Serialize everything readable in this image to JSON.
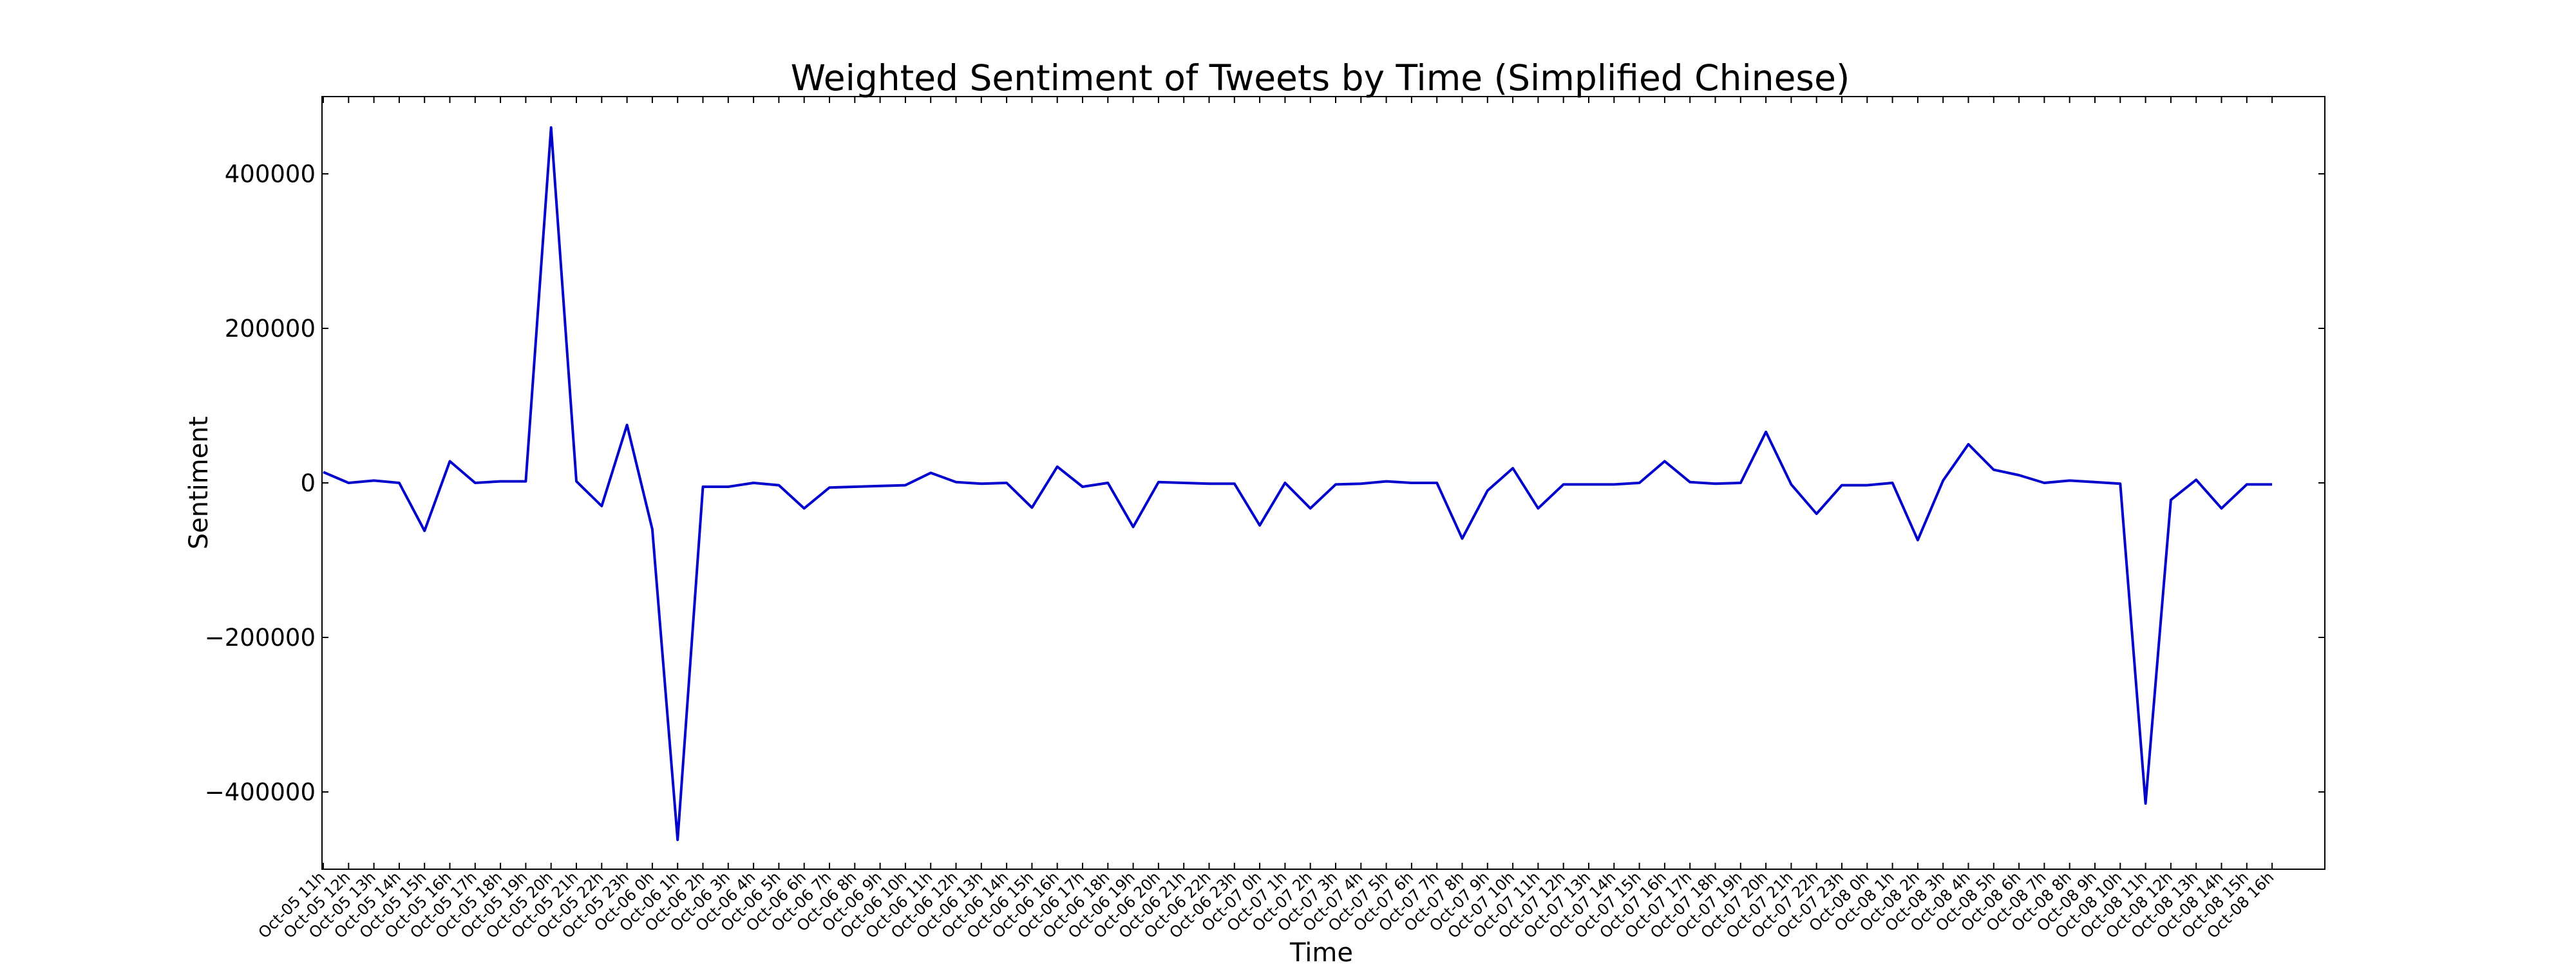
{
  "chart_data": {
    "type": "line",
    "title": "Weighted Sentiment of Tweets by Time (Simplified Chinese)",
    "xlabel": "Time",
    "ylabel": "Sentiment",
    "ylim": [
      -500000,
      500000
    ],
    "yticks": [
      -400000,
      -200000,
      0,
      200000,
      400000
    ],
    "ytick_labels": [
      "−400000",
      "−200000",
      "0",
      "200000",
      "400000"
    ],
    "grid": false,
    "line_color": "#0000cc",
    "categories": [
      "Oct-05 11h",
      "Oct-05 12h",
      "Oct-05 13h",
      "Oct-05 14h",
      "Oct-05 15h",
      "Oct-05 16h",
      "Oct-05 17h",
      "Oct-05 18h",
      "Oct-05 19h",
      "Oct-05 20h",
      "Oct-05 21h",
      "Oct-05 22h",
      "Oct-05 23h",
      "Oct-06 0h",
      "Oct-06 1h",
      "Oct-06 2h",
      "Oct-06 3h",
      "Oct-06 4h",
      "Oct-06 5h",
      "Oct-06 6h",
      "Oct-06 7h",
      "Oct-06 8h",
      "Oct-06 9h",
      "Oct-06 10h",
      "Oct-06 11h",
      "Oct-06 12h",
      "Oct-06 13h",
      "Oct-06 14h",
      "Oct-06 15h",
      "Oct-06 16h",
      "Oct-06 17h",
      "Oct-06 18h",
      "Oct-06 19h",
      "Oct-06 20h",
      "Oct-06 21h",
      "Oct-06 22h",
      "Oct-06 23h",
      "Oct-07 0h",
      "Oct-07 1h",
      "Oct-07 2h",
      "Oct-07 3h",
      "Oct-07 4h",
      "Oct-07 5h",
      "Oct-07 6h",
      "Oct-07 7h",
      "Oct-07 8h",
      "Oct-07 9h",
      "Oct-07 10h",
      "Oct-07 11h",
      "Oct-07 12h",
      "Oct-07 13h",
      "Oct-07 14h",
      "Oct-07 15h",
      "Oct-07 16h",
      "Oct-07 17h",
      "Oct-07 18h",
      "Oct-07 19h",
      "Oct-07 20h",
      "Oct-07 21h",
      "Oct-07 22h",
      "Oct-07 23h",
      "Oct-08 0h",
      "Oct-08 1h",
      "Oct-08 2h",
      "Oct-08 3h",
      "Oct-08 4h",
      "Oct-08 5h",
      "Oct-08 6h",
      "Oct-08 7h",
      "Oct-08 8h",
      "Oct-08 9h",
      "Oct-08 10h",
      "Oct-08 11h",
      "Oct-08 12h",
      "Oct-08 13h",
      "Oct-08 14h",
      "Oct-08 15h",
      "Oct-08 16h"
    ],
    "series": [
      {
        "values": [
          14000,
          0,
          3000,
          0,
          -62000,
          28000,
          0,
          2000,
          2000,
          460000,
          2000,
          -30000,
          75000,
          -60000,
          -462000,
          -5000,
          -5000,
          0,
          -3000,
          -33000,
          -6000,
          -5000,
          -4000,
          -3000,
          13000,
          1000,
          -1000,
          0,
          -32000,
          21000,
          -5000,
          0,
          -57000,
          1000,
          0,
          -1000,
          -1000,
          -55000,
          0,
          -33000,
          -2000,
          -1000,
          2000,
          0,
          0,
          -72000,
          -10000,
          19000,
          -33000,
          -2000,
          -2000,
          -2000,
          0,
          28000,
          1000,
          -1000,
          0,
          66000,
          -2000,
          -40000,
          -3000,
          -3000,
          0,
          -74000,
          3000,
          50000,
          17000,
          10000,
          0,
          3000,
          1000,
          -1000,
          -415000,
          -22000,
          4000,
          -33000,
          -2000,
          -2000
        ]
      }
    ]
  }
}
